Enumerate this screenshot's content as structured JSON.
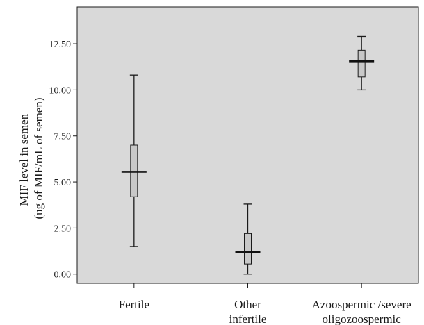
{
  "chart_data": {
    "type": "boxplot",
    "ylabel_lines": [
      "MIF level in semen",
      "(ug of MIF/mL of semen)"
    ],
    "xlabel": "",
    "ylim": [
      -0.5,
      14.5
    ],
    "yticks": [
      0.0,
      2.5,
      5.0,
      7.5,
      10.0,
      12.5
    ],
    "ytick_labels": [
      "0.00",
      "2.50",
      "5.00",
      "7.50",
      "10.00",
      "12.50"
    ],
    "grid": false,
    "background_color": "#d9d9d9",
    "box_color": "#c8c8c8",
    "categories": [
      {
        "label_lines": [
          "Fertile"
        ],
        "min": 1.5,
        "q1": 4.2,
        "median": 5.55,
        "q3": 7.0,
        "max": 10.8
      },
      {
        "label_lines": [
          "Other",
          "infertile"
        ],
        "min": 0.0,
        "q1": 0.55,
        "median": 1.2,
        "q3": 2.2,
        "max": 3.8
      },
      {
        "label_lines": [
          "Azoospermic /severe",
          "oligozoospermic"
        ],
        "min": 10.0,
        "q1": 10.7,
        "median": 11.55,
        "q3": 12.15,
        "max": 12.9
      }
    ]
  }
}
